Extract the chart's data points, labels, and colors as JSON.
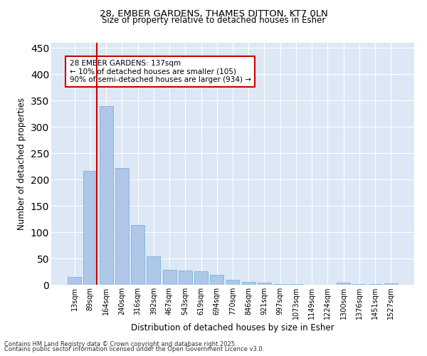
{
  "title_line1": "28, EMBER GARDENS, THAMES DITTON, KT7 0LN",
  "title_line2": "Size of property relative to detached houses in Esher",
  "xlabel": "Distribution of detached houses by size in Esher",
  "ylabel": "Number of detached properties",
  "categories": [
    "13sqm",
    "89sqm",
    "164sqm",
    "240sqm",
    "316sqm",
    "392sqm",
    "467sqm",
    "543sqm",
    "619sqm",
    "694sqm",
    "770sqm",
    "846sqm",
    "921sqm",
    "997sqm",
    "1073sqm",
    "1149sqm",
    "1224sqm",
    "1300sqm",
    "1376sqm",
    "1451sqm",
    "1527sqm"
  ],
  "values": [
    15,
    216,
    339,
    222,
    113,
    54,
    28,
    27,
    26,
    19,
    9,
    6,
    4,
    1,
    1,
    0,
    0,
    4,
    1,
    1,
    3
  ],
  "bar_color": "#aec6e8",
  "bar_edge_color": "#6aadd5",
  "vline_color": "#cc0000",
  "ylim": [
    0,
    460
  ],
  "yticks": [
    0,
    50,
    100,
    150,
    200,
    250,
    300,
    350,
    400,
    450
  ],
  "annotation_text": "28 EMBER GARDENS: 137sqm\n← 10% of detached houses are smaller (105)\n90% of semi-detached houses are larger (934) →",
  "annotation_box_color": "#cc0000",
  "bg_color": "#dce8f5",
  "footer_line1": "Contains HM Land Registry data © Crown copyright and database right 2025.",
  "footer_line2": "Contains public sector information licensed under the Open Government Licence v3.0."
}
